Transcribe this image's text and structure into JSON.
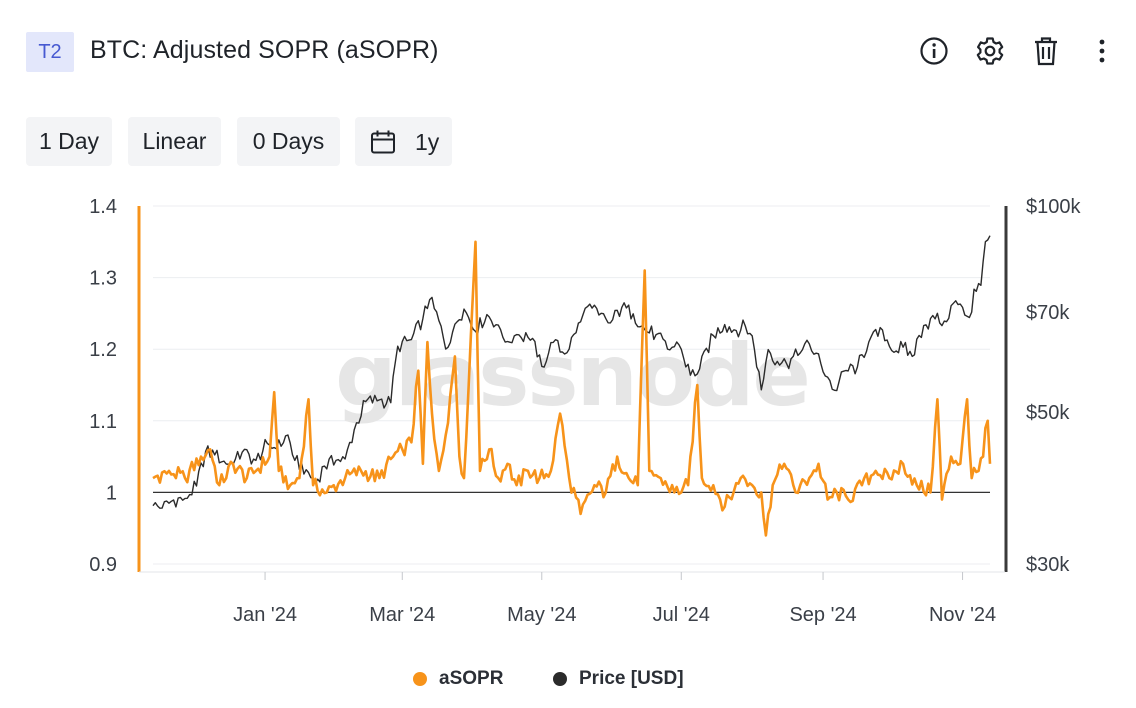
{
  "header": {
    "badge": "T2",
    "title": "BTC: Adjusted SOPR (aSOPR)",
    "icons": [
      "info-icon",
      "gear-icon",
      "trash-icon",
      "more-vertical-icon"
    ]
  },
  "toolbar": {
    "resolution": "1 Day",
    "scale": "Linear",
    "smoothing": "0 Days",
    "range": "1y",
    "range_icon": "calendar-icon"
  },
  "watermark": "glassnode",
  "colors": {
    "asopr": "#f7931a",
    "price": "#2b2b2b",
    "baseline": "#333333",
    "grid": "#eceef1",
    "right_axis": "#3a3a3a"
  },
  "chart_data": {
    "type": "line",
    "left_axis": {
      "ticks": [
        "1.4",
        "1.3",
        "1.2",
        "1.1",
        "1",
        "0.9"
      ],
      "ylim": [
        0.9,
        1.4
      ]
    },
    "right_axis": {
      "ticks": [
        "$100k",
        "$70k",
        "$50k",
        "$30k"
      ],
      "scale": "log",
      "ylim": [
        30000,
        100000
      ]
    },
    "x_ticks": [
      "Jan '24",
      "Mar '24",
      "May '24",
      "Jul '24",
      "Sep '24",
      "Nov '24"
    ],
    "x_range": [
      "2023-11-13",
      "2024-11-13"
    ],
    "reference_line": 1,
    "grid": true,
    "legend_position": "bottom",
    "series": [
      {
        "name": "aSOPR",
        "axis": "left",
        "points": [
          [
            "2023-11-13",
            1.02
          ],
          [
            "2023-11-20",
            1.03
          ],
          [
            "2023-11-27",
            1.02
          ],
          [
            "2023-12-04",
            1.05
          ],
          [
            "2023-12-08",
            1.06
          ],
          [
            "2023-12-12",
            1.01
          ],
          [
            "2023-12-18",
            1.04
          ],
          [
            "2023-12-24",
            1.02
          ],
          [
            "2023-12-28",
            1.03
          ],
          [
            "2024-01-03",
            1.05
          ],
          [
            "2024-01-05",
            1.14
          ],
          [
            "2024-01-07",
            1.03
          ],
          [
            "2024-01-12",
            1.01
          ],
          [
            "2024-01-16",
            1.02
          ],
          [
            "2024-01-20",
            1.13
          ],
          [
            "2024-01-22",
            1.01
          ],
          [
            "2024-01-28",
            1.0
          ],
          [
            "2024-02-05",
            1.02
          ],
          [
            "2024-02-12",
            1.03
          ],
          [
            "2024-02-20",
            1.02
          ],
          [
            "2024-02-26",
            1.05
          ],
          [
            "2024-03-01",
            1.06
          ],
          [
            "2024-03-05",
            1.07
          ],
          [
            "2024-03-08",
            1.17
          ],
          [
            "2024-03-10",
            1.04
          ],
          [
            "2024-03-12",
            1.21
          ],
          [
            "2024-03-14",
            1.11
          ],
          [
            "2024-03-17",
            1.03
          ],
          [
            "2024-03-20",
            1.08
          ],
          [
            "2024-03-24",
            1.19
          ],
          [
            "2024-03-26",
            1.05
          ],
          [
            "2024-03-28",
            1.02
          ],
          [
            "2024-03-31",
            1.22
          ],
          [
            "2024-04-02",
            1.35
          ],
          [
            "2024-04-04",
            1.03
          ],
          [
            "2024-04-08",
            1.06
          ],
          [
            "2024-04-12",
            1.02
          ],
          [
            "2024-04-16",
            1.04
          ],
          [
            "2024-04-20",
            1.01
          ],
          [
            "2024-04-25",
            1.03
          ],
          [
            "2024-04-30",
            1.02
          ],
          [
            "2024-05-05",
            1.03
          ],
          [
            "2024-05-09",
            1.11
          ],
          [
            "2024-05-13",
            1.02
          ],
          [
            "2024-05-18",
            0.97
          ],
          [
            "2024-05-24",
            1.01
          ],
          [
            "2024-05-29",
            1.0
          ],
          [
            "2024-06-03",
            1.05
          ],
          [
            "2024-06-08",
            1.02
          ],
          [
            "2024-06-12",
            1.01
          ],
          [
            "2024-06-15",
            1.31
          ],
          [
            "2024-06-17",
            1.03
          ],
          [
            "2024-06-22",
            1.02
          ],
          [
            "2024-06-28",
            1.0
          ],
          [
            "2024-07-04",
            1.01
          ],
          [
            "2024-07-08",
            1.15
          ],
          [
            "2024-07-10",
            1.02
          ],
          [
            "2024-07-15",
            1.01
          ],
          [
            "2024-07-20",
            0.98
          ],
          [
            "2024-07-27",
            1.02
          ],
          [
            "2024-08-01",
            1.01
          ],
          [
            "2024-08-05",
            1.0
          ],
          [
            "2024-08-07",
            0.94
          ],
          [
            "2024-08-10",
            1.01
          ],
          [
            "2024-08-15",
            1.04
          ],
          [
            "2024-08-20",
            1.0
          ],
          [
            "2024-08-26",
            1.02
          ],
          [
            "2024-08-30",
            1.04
          ],
          [
            "2024-09-03",
            0.99
          ],
          [
            "2024-09-07",
            1.0
          ],
          [
            "2024-09-12",
            0.99
          ],
          [
            "2024-09-18",
            1.01
          ],
          [
            "2024-09-24",
            1.03
          ],
          [
            "2024-09-30",
            1.02
          ],
          [
            "2024-10-06",
            1.04
          ],
          [
            "2024-10-12",
            1.01
          ],
          [
            "2024-10-18",
            1.0
          ],
          [
            "2024-10-21",
            1.13
          ],
          [
            "2024-10-23",
            0.99
          ],
          [
            "2024-10-27",
            1.05
          ],
          [
            "2024-10-31",
            1.04
          ],
          [
            "2024-11-03",
            1.13
          ],
          [
            "2024-11-05",
            1.02
          ],
          [
            "2024-11-08",
            1.03
          ],
          [
            "2024-11-10",
            1.05
          ],
          [
            "2024-11-11",
            1.09
          ],
          [
            "2024-11-12",
            1.1
          ],
          [
            "2024-11-13",
            1.04
          ]
        ]
      },
      {
        "name": "Price [USD]",
        "axis": "right",
        "points": [
          [
            "2023-11-13",
            36500
          ],
          [
            "2023-11-17",
            36200
          ],
          [
            "2023-11-22",
            37200
          ],
          [
            "2023-11-27",
            37400
          ],
          [
            "2023-12-02",
            39000
          ],
          [
            "2023-12-06",
            43800
          ],
          [
            "2023-12-10",
            43300
          ],
          [
            "2023-12-14",
            42400
          ],
          [
            "2023-12-18",
            41900
          ],
          [
            "2023-12-22",
            43700
          ],
          [
            "2023-12-28",
            42500
          ],
          [
            "2024-01-02",
            45000
          ],
          [
            "2024-01-06",
            44200
          ],
          [
            "2024-01-11",
            46300
          ],
          [
            "2024-01-14",
            42500
          ],
          [
            "2024-01-19",
            41200
          ],
          [
            "2024-01-23",
            39400
          ],
          [
            "2024-01-27",
            41700
          ],
          [
            "2024-02-01",
            42500
          ],
          [
            "2024-02-05",
            42700
          ],
          [
            "2024-02-09",
            47100
          ],
          [
            "2024-02-14",
            51800
          ],
          [
            "2024-02-20",
            52100
          ],
          [
            "2024-02-25",
            51600
          ],
          [
            "2024-02-28",
            62400
          ],
          [
            "2024-03-05",
            63800
          ],
          [
            "2024-03-10",
            68500
          ],
          [
            "2024-03-13",
            73000
          ],
          [
            "2024-03-17",
            68000
          ],
          [
            "2024-03-20",
            61800
          ],
          [
            "2024-03-24",
            67200
          ],
          [
            "2024-03-28",
            70700
          ],
          [
            "2024-04-02",
            65600
          ],
          [
            "2024-04-07",
            69400
          ],
          [
            "2024-04-12",
            67000
          ],
          [
            "2024-04-16",
            63400
          ],
          [
            "2024-04-20",
            64900
          ],
          [
            "2024-04-25",
            64300
          ],
          [
            "2024-04-30",
            60600
          ],
          [
            "2024-05-01",
            58300
          ],
          [
            "2024-05-06",
            63200
          ],
          [
            "2024-05-11",
            60800
          ],
          [
            "2024-05-16",
            65300
          ],
          [
            "2024-05-21",
            71300
          ],
          [
            "2024-05-26",
            69300
          ],
          [
            "2024-05-31",
            67500
          ],
          [
            "2024-06-05",
            71100
          ],
          [
            "2024-06-10",
            69600
          ],
          [
            "2024-06-15",
            66000
          ],
          [
            "2024-06-20",
            64900
          ],
          [
            "2024-06-25",
            61800
          ],
          [
            "2024-06-30",
            62700
          ],
          [
            "2024-07-05",
            56600
          ],
          [
            "2024-07-09",
            57800
          ],
          [
            "2024-07-15",
            64700
          ],
          [
            "2024-07-20",
            67100
          ],
          [
            "2024-07-25",
            65800
          ],
          [
            "2024-07-29",
            66800
          ],
          [
            "2024-08-01",
            64600
          ],
          [
            "2024-08-05",
            53900
          ],
          [
            "2024-08-08",
            61700
          ],
          [
            "2024-08-12",
            59300
          ],
          [
            "2024-08-16",
            58900
          ],
          [
            "2024-08-22",
            61000
          ],
          [
            "2024-08-26",
            62900
          ],
          [
            "2024-08-31",
            58900
          ],
          [
            "2024-09-06",
            53800
          ],
          [
            "2024-09-11",
            57500
          ],
          [
            "2024-09-16",
            58200
          ],
          [
            "2024-09-21",
            63300
          ],
          [
            "2024-09-27",
            65900
          ],
          [
            "2024-10-01",
            61500
          ],
          [
            "2024-10-06",
            62200
          ],
          [
            "2024-10-10",
            60300
          ],
          [
            "2024-10-15",
            66900
          ],
          [
            "2024-10-20",
            68400
          ],
          [
            "2024-10-24",
            67900
          ],
          [
            "2024-10-29",
            72700
          ],
          [
            "2024-11-02",
            69300
          ],
          [
            "2024-11-05",
            70000
          ],
          [
            "2024-11-06",
            75600
          ],
          [
            "2024-11-09",
            76600
          ],
          [
            "2024-11-11",
            88700
          ],
          [
            "2024-11-12",
            89200
          ],
          [
            "2024-11-13",
            90500
          ]
        ]
      }
    ]
  },
  "legend": [
    {
      "label": "aSOPR",
      "color": "#f7931a"
    },
    {
      "label": "Price [USD]",
      "color": "#2b2b2b"
    }
  ]
}
